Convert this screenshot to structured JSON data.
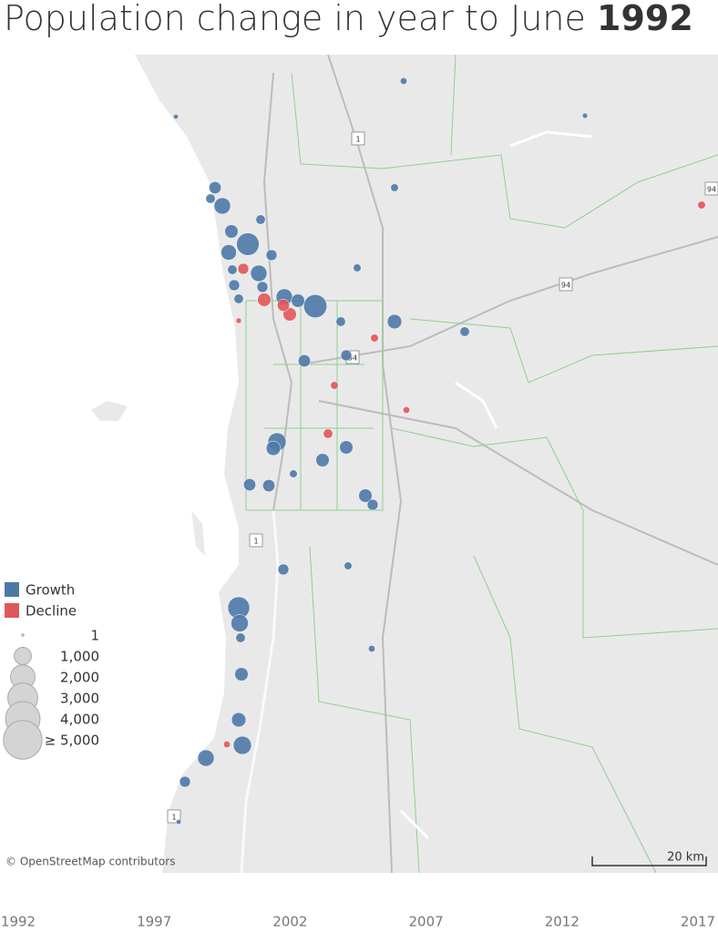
{
  "title": "Population change in year to June",
  "year": "1992",
  "map": {
    "series": [
      {
        "name": "Growth",
        "color": "#4e79a7",
        "values": [
          150,
          80,
          90,
          200,
          500,
          300,
          900,
          300,
          600,
          1700,
          800,
          400,
          900,
          300,
          200,
          400,
          400,
          300,
          900,
          600,
          1800,
          300,
          700,
          300,
          500,
          400,
          1100,
          700,
          600,
          600,
          200,
          500,
          500,
          600,
          400,
          400,
          200,
          1600,
          1000,
          300,
          600,
          700,
          1100,
          900,
          400,
          150,
          80
        ]
      },
      {
        "name": "Decline",
        "color": "#e15759",
        "values": [
          400,
          600,
          600,
          500,
          300,
          200,
          200,
          150,
          200,
          150,
          100
        ]
      }
    ],
    "size_legend": [
      1,
      {
        "value": 1000,
        "label": "1,000"
      },
      {
        "value": 2000,
        "label": "2,000"
      },
      {
        "value": 3000,
        "label": "3,000"
      },
      {
        "value": 4000,
        "label": "4,000"
      },
      {
        "value": 5000,
        "label": "≥ 5,000"
      }
    ],
    "road_labels": [
      "1",
      "94",
      "94",
      "1",
      "1",
      "94"
    ],
    "attribution": "© OpenStreetMap contributors",
    "scale_label": "20 km"
  },
  "timeline": [
    "1992",
    "1997",
    "2002",
    "2007",
    "2012",
    "2017"
  ]
}
